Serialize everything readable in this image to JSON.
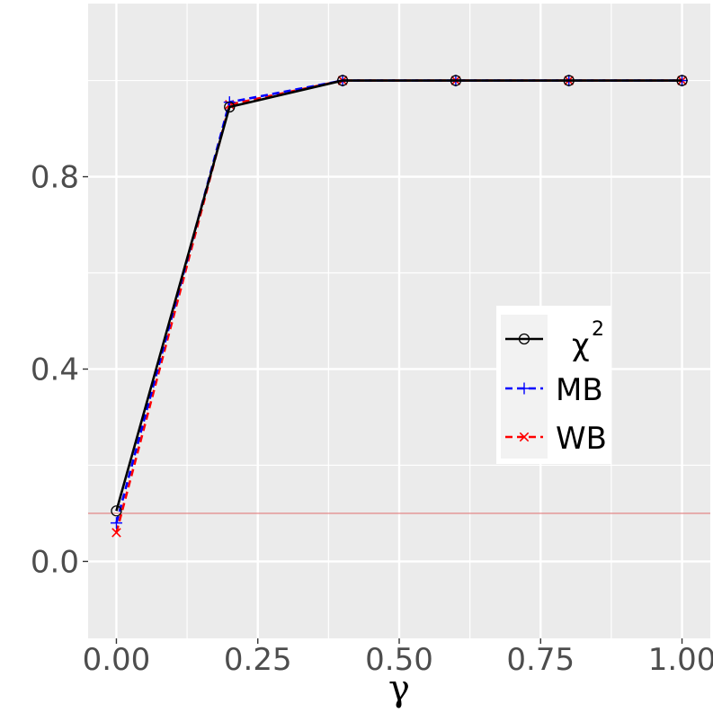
{
  "chart_data": {
    "type": "line",
    "title": "",
    "xlabel": "γ",
    "ylabel": "",
    "x": [
      0.0,
      0.2,
      0.4,
      0.6,
      0.8,
      1.0
    ],
    "xlim": [
      -0.05,
      1.05
    ],
    "ylim": [
      -0.16,
      1.16
    ],
    "x_ticks": [
      0.0,
      0.25,
      0.5,
      0.75,
      1.0
    ],
    "x_tick_labels": [
      "0.00",
      "0.25",
      "0.50",
      "0.75",
      "1.00"
    ],
    "y_ticks": [
      0.0,
      0.4,
      0.8
    ],
    "y_tick_labels": [
      "0.0",
      "0.4",
      "0.8"
    ],
    "grid": true,
    "hline": {
      "y": 0.1,
      "color": "#e07b7b"
    },
    "series": [
      {
        "name": "χ",
        "name_sup": "2",
        "values": [
          0.105,
          0.945,
          1.0,
          1.0,
          1.0,
          1.0
        ],
        "color": "#000000",
        "dash": "solid",
        "marker": "circle"
      },
      {
        "name": "MB",
        "values": [
          0.08,
          0.955,
          1.0,
          1.0,
          1.0,
          1.0
        ],
        "color": "#0000ff",
        "dash": "dashed",
        "marker": "plus"
      },
      {
        "name": "WB",
        "values": [
          0.06,
          0.95,
          1.0,
          1.0,
          1.0,
          1.0
        ],
        "color": "#ff0000",
        "dash": "dashed",
        "marker": "cross"
      }
    ],
    "legend_position": "right"
  }
}
